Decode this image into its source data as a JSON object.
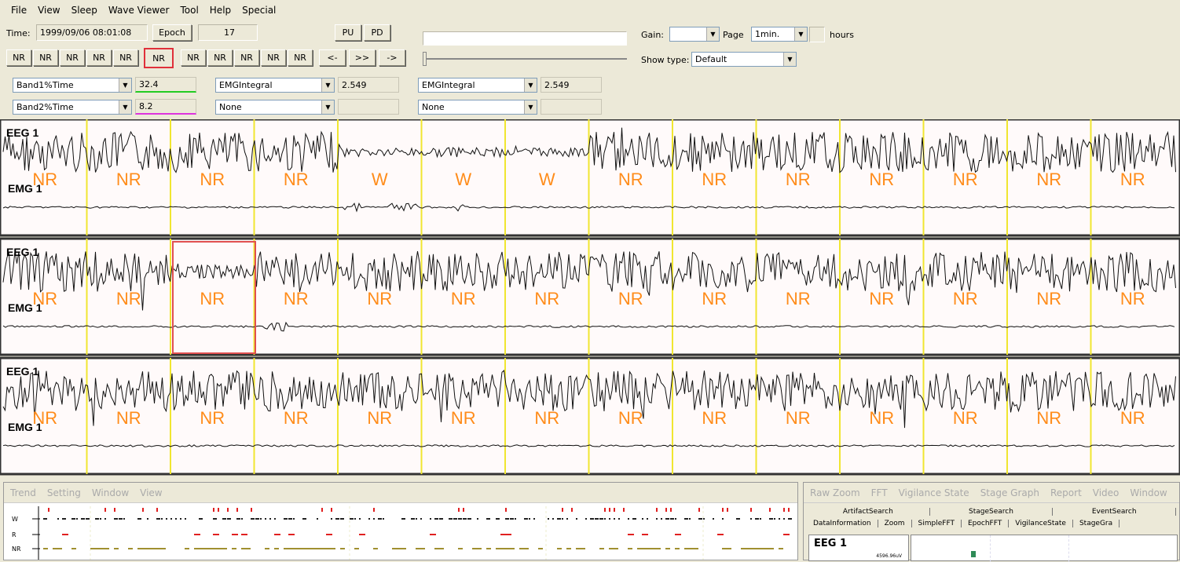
{
  "menu": [
    "File",
    "View",
    "Sleep",
    "Wave Viewer",
    "Tool",
    "Help",
    "Special"
  ],
  "header": {
    "time_label": "Time:",
    "time_value": "1999/09/06 08:01:08",
    "epoch_button": "Epoch",
    "epoch_value": "17",
    "pu_button": "PU",
    "pd_button": "PD",
    "gain_label": "Gain:",
    "gain_value": "",
    "page_label": "Page",
    "page_value": "1min.",
    "hours_label": "hours",
    "show_type_label": "Show type:",
    "show_type_value": "Default"
  },
  "stage_buttons": [
    "NR",
    "NR",
    "NR",
    "NR",
    "NR",
    "NR",
    "NR",
    "NR",
    "NR",
    "NR",
    "NR"
  ],
  "selected_stage_index": 5,
  "nav_buttons": [
    "<-",
    ">>",
    "->"
  ],
  "params": {
    "r1": [
      {
        "name": "Band1%Time",
        "value": "32.4",
        "color": "#22cc22"
      },
      {
        "name": "EMGIntegral",
        "value": "2.549"
      },
      {
        "name": "EMGIntegral",
        "value": "2.549"
      }
    ],
    "r2": [
      {
        "name": "Band2%Time",
        "value": "8.2",
        "color": "#dd33dd"
      },
      {
        "name": "None",
        "value": ""
      },
      {
        "name": "None",
        "value": ""
      }
    ]
  },
  "channels": {
    "eeg": "EEG 1",
    "emg": "EMG 1"
  },
  "stage_rows": [
    [
      "NR",
      "NR",
      "NR",
      "NR",
      "W",
      "W",
      "W",
      "NR",
      "NR",
      "NR",
      "NR",
      "NR",
      "NR",
      "NR"
    ],
    [
      "NR",
      "NR",
      "NR",
      "NR",
      "NR",
      "NR",
      "NR",
      "NR",
      "NR",
      "NR",
      "NR",
      "NR",
      "NR",
      "NR"
    ],
    [
      "NR",
      "NR",
      "NR",
      "NR",
      "NR",
      "NR",
      "NR",
      "NR",
      "NR",
      "NR",
      "NR",
      "NR",
      "NR",
      "NR"
    ]
  ],
  "colors": {
    "stage": "#ff8c1a",
    "epoch_line": "#f0e630",
    "selection": "#e05050"
  },
  "trend_panel": {
    "tabs": [
      "Trend",
      "Setting",
      "Window",
      "View"
    ],
    "axis": [
      "W",
      "R",
      "NR"
    ]
  },
  "right_panel": {
    "tabs": [
      "Raw Zoom",
      "FFT",
      "Vigilance State",
      "Stage Graph",
      "Report",
      "Video",
      "Window"
    ],
    "subtabs_top": [
      "ArtifactSearch",
      "StageSearch",
      "EventSearch"
    ],
    "subtabs_bottom": [
      "DataInformation",
      "Zoom",
      "SimpleFFT",
      "EpochFFT",
      "VigilanceState",
      "StageGra"
    ],
    "channel": "EEG 1",
    "scale": "4596.96uV"
  }
}
